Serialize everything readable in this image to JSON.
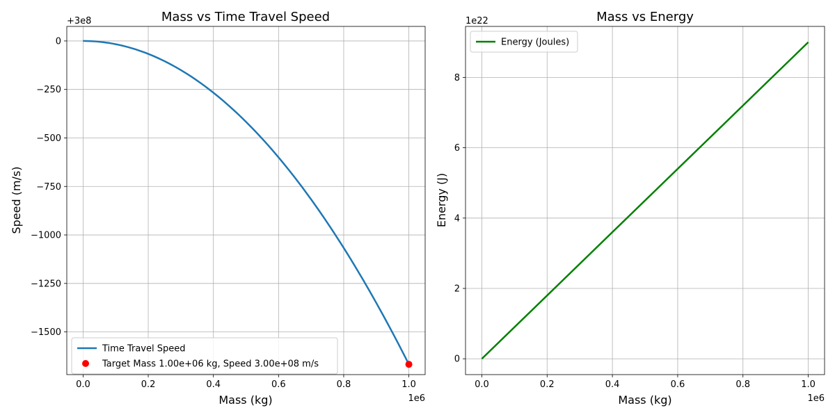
{
  "chart_data": [
    {
      "type": "line",
      "title": "Mass vs Time Travel Speed",
      "xlabel": "Mass (kg)",
      "ylabel": "Speed (m/s)",
      "x_offset_label": "1e6",
      "y_offset_label": "+3e8",
      "xlim": [
        -0.05,
        1.05
      ],
      "ylim": [
        -1720,
        75
      ],
      "x_ticks": [
        0.0,
        0.2,
        0.4,
        0.6,
        0.8,
        1.0
      ],
      "x_tick_labels": [
        "0.0",
        "0.2",
        "0.4",
        "0.6",
        "0.8",
        "1.0"
      ],
      "y_ticks": [
        0,
        -250,
        -500,
        -750,
        -1000,
        -1250,
        -1500
      ],
      "y_tick_labels": [
        "0",
        "−250",
        "−500",
        "−750",
        "−1000",
        "−1250",
        "−1500"
      ],
      "grid": true,
      "legend_position": "lower-left",
      "series": [
        {
          "name": "Time Travel Speed",
          "kind": "line",
          "color": "#1f77b4",
          "x": [
            0.0,
            0.1,
            0.2,
            0.3,
            0.4,
            0.5,
            0.6,
            0.7,
            0.8,
            0.9,
            1.0
          ],
          "y": [
            0,
            -17,
            -67,
            -150,
            -267,
            -418,
            -600,
            -818,
            -1068,
            -1351,
            -1667
          ]
        },
        {
          "name": "Target Mass 1.00e+06 kg, Speed 3.00e+08 m/s",
          "kind": "scatter",
          "color": "#ff0000",
          "x": [
            1.0
          ],
          "y": [
            -1667
          ]
        }
      ]
    },
    {
      "type": "line",
      "title": "Mass vs Energy",
      "xlabel": "Mass (kg)",
      "ylabel": "Energy (J)",
      "x_offset_label": "1e6",
      "y_offset_label": "1e22",
      "xlim": [
        -0.05,
        1.05
      ],
      "ylim": [
        -0.45,
        9.45
      ],
      "x_ticks": [
        0.0,
        0.2,
        0.4,
        0.6,
        0.8,
        1.0
      ],
      "x_tick_labels": [
        "0.0",
        "0.2",
        "0.4",
        "0.6",
        "0.8",
        "1.0"
      ],
      "y_ticks": [
        0,
        2,
        4,
        6,
        8
      ],
      "y_tick_labels": [
        "0",
        "2",
        "4",
        "6",
        "8"
      ],
      "grid": true,
      "legend_position": "top-left",
      "series": [
        {
          "name": "Energy (Joules)",
          "kind": "line",
          "color": "#008000",
          "x": [
            0.0,
            1.0
          ],
          "y": [
            0,
            9.0
          ]
        }
      ]
    }
  ]
}
